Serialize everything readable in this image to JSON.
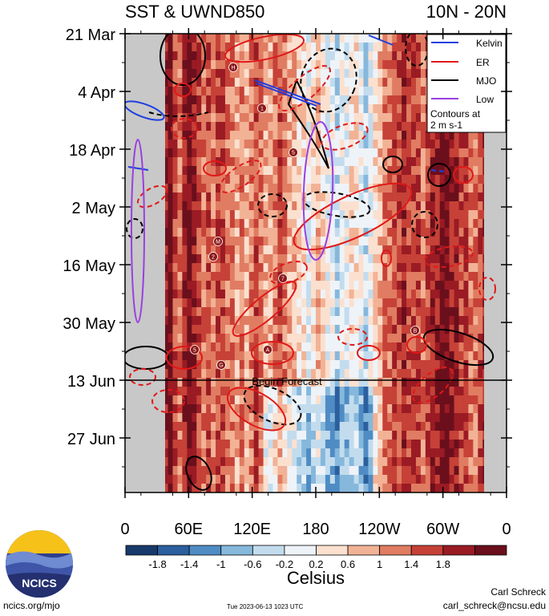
{
  "header": {
    "title_left": "SST & UWND850",
    "title_right": "10N - 20N"
  },
  "chart_data": {
    "type": "heatmap",
    "title": "SST & UWND850",
    "region": "10N - 20N",
    "y_tick_labels": [
      "21 Mar",
      "4 Apr",
      "18 Apr",
      "2 May",
      "16 May",
      "30 May",
      "13 Jun",
      "27 Jun"
    ],
    "x_tick_labels": [
      "0",
      "60E",
      "120E",
      "180",
      "120W",
      "60W",
      "0"
    ],
    "x_range_deg_east": [
      0,
      360
    ],
    "colorbar": {
      "label": "Celsius",
      "tick_labels": [
        "-1.8",
        "-1.4",
        "-1",
        "-0.6",
        "-0.2",
        "0.2",
        "0.6",
        "1",
        "1.4",
        "1.8"
      ],
      "colors": [
        "#173a6b",
        "#2b5f9e",
        "#4f8cc4",
        "#86b8dc",
        "#c2dcee",
        "#eef3f8",
        "#fbe0cf",
        "#f2b295",
        "#e07c62",
        "#c64137",
        "#9a1b24",
        "#6b0f1c"
      ]
    },
    "forecast_label": "Begin Forecast",
    "legend": {
      "placement": "top-right",
      "entries": [
        {
          "name": "Kelvin",
          "color": "#1f3fe0"
        },
        {
          "name": "ER",
          "color": "#e01818"
        },
        {
          "name": "MJO",
          "color": "#000000"
        },
        {
          "name": "Low",
          "color": "#9b3fe0"
        }
      ],
      "note_line1": "Contours at",
      "note_line2": "2 m s-1"
    },
    "storm_markers": [
      "H",
      "1",
      "5",
      "M",
      "2",
      "7",
      "B",
      "5",
      "G",
      "A"
    ]
  },
  "footer": {
    "website": "ncics.org/mjo",
    "timestamp": "Tue 2023-06-13 1023 UTC",
    "author_name": "Carl Schreck",
    "author_email": "carl_schreck@ncsu.edu",
    "logo_text": "NCICS"
  }
}
